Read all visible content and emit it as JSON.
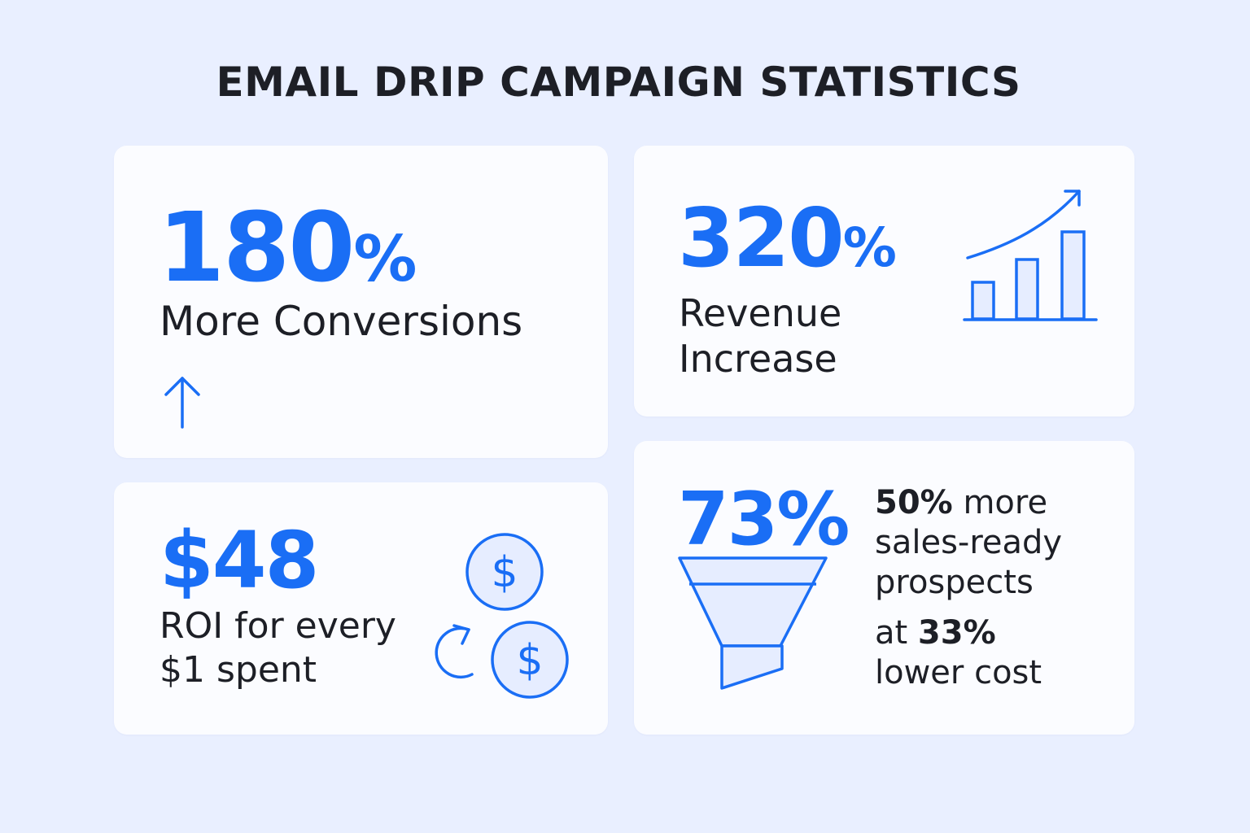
{
  "title": "EMAIL DRIP CAMPAIGN STATISTICS",
  "colors": {
    "accent": "#1a6ef5",
    "background": "#e9efff",
    "card": "#fbfcff",
    "text": "#1d1f26"
  },
  "cards": {
    "conversions": {
      "number": "180",
      "unit": "%",
      "label": "More Conversions",
      "icon": "arrow-up-icon"
    },
    "revenue": {
      "number": "320",
      "unit": "%",
      "label_line1": "Revenue",
      "label_line2": "Increase",
      "icon": "bar-chart-trend-icon"
    },
    "roi": {
      "value": "$48",
      "label_line1": "ROI for every",
      "label_line2": "$1 spent",
      "icon": "coins-cycle-icon"
    },
    "funnel": {
      "value": "73%",
      "line1_bold": "50%",
      "line1_rest": " more",
      "line2": "sales-ready",
      "line3": "prospects",
      "line4_pre": "at ",
      "line4_bold": "33%",
      "line5": "lower cost",
      "icon": "funnel-icon"
    }
  }
}
